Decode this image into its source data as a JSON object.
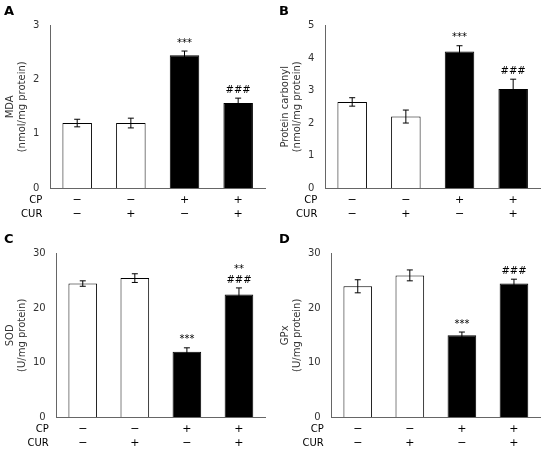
{
  "chart_data": [
    {
      "type": "bar",
      "title": "A",
      "ylabel": "MDA\n(nmol/mg protein)",
      "xlabel": [
        "CP",
        "CUR"
      ],
      "categories": [
        [
          "−",
          "−"
        ],
        [
          "−",
          "+"
        ],
        [
          "+",
          "−"
        ],
        [
          "+",
          "+"
        ]
      ],
      "values": [
        1.2,
        1.2,
        2.45,
        1.57
      ],
      "errors": [
        0.07,
        0.09,
        0.08,
        0.09
      ],
      "colors": [
        "white",
        "white",
        "black",
        "black"
      ],
      "ylim": [
        0,
        3
      ],
      "yticks": [
        0,
        1,
        2,
        3
      ],
      "grid": false,
      "annotations": [
        {
          "category": 2,
          "text": "***"
        },
        {
          "category": 3,
          "text": "###"
        }
      ]
    },
    {
      "type": "bar",
      "title": "B",
      "ylabel": "Protein carbonyl\n(nmol/mg protein)",
      "xlabel": [
        "CP",
        "CUR"
      ],
      "categories": [
        [
          "−",
          "−"
        ],
        [
          "−",
          "+"
        ],
        [
          "+",
          "−"
        ],
        [
          "+",
          "+"
        ]
      ],
      "values": [
        2.65,
        2.2,
        4.2,
        3.05
      ],
      "errors": [
        0.13,
        0.2,
        0.18,
        0.3
      ],
      "colors": [
        "white",
        "white",
        "black",
        "black"
      ],
      "ylim": [
        0,
        5
      ],
      "yticks": [
        0,
        1,
        2,
        3,
        4,
        5
      ],
      "grid": false,
      "annotations": [
        {
          "category": 2,
          "text": "***"
        },
        {
          "category": 3,
          "text": "###"
        }
      ]
    },
    {
      "type": "bar",
      "title": "C",
      "ylabel": "SOD\n(U/mg protein)",
      "xlabel": [
        "CP",
        "CUR"
      ],
      "categories": [
        [
          "−",
          "−"
        ],
        [
          "−",
          "+"
        ],
        [
          "+",
          "−"
        ],
        [
          "+",
          "+"
        ]
      ],
      "values": [
        24.5,
        25.5,
        12.0,
        22.5
      ],
      "errors": [
        0.5,
        0.8,
        0.7,
        1.2
      ],
      "colors": [
        "white",
        "white",
        "black",
        "black"
      ],
      "ylim": [
        0,
        30
      ],
      "yticks": [
        0,
        10,
        20,
        30
      ],
      "grid": false,
      "annotations": [
        {
          "category": 2,
          "text": "***"
        },
        {
          "category": 3,
          "text": "###"
        },
        {
          "category": 3,
          "text": "**"
        }
      ]
    },
    {
      "type": "bar",
      "title": "D",
      "ylabel": "GPx\n(U/mg protein)",
      "xlabel": [
        "CP",
        "CUR"
      ],
      "categories": [
        [
          "−",
          "−"
        ],
        [
          "−",
          "+"
        ],
        [
          "+",
          "−"
        ],
        [
          "+",
          "+"
        ]
      ],
      "values": [
        24.0,
        26.0,
        15.0,
        24.5
      ],
      "errors": [
        1.2,
        1.0,
        0.6,
        0.8
      ],
      "colors": [
        "white",
        "white",
        "black",
        "black"
      ],
      "ylim": [
        0,
        30
      ],
      "yticks": [
        0,
        10,
        20,
        30
      ],
      "grid": false,
      "annotations": [
        {
          "category": 2,
          "text": "***"
        },
        {
          "category": 3,
          "text": "###"
        }
      ]
    }
  ]
}
